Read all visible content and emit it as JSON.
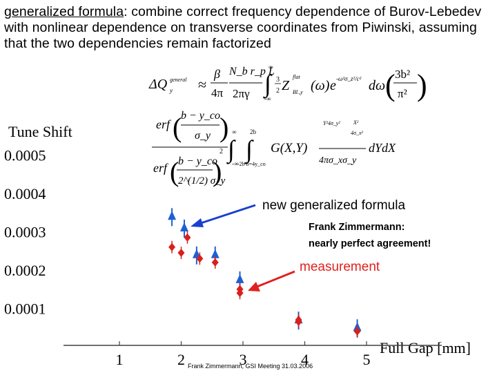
{
  "intro": {
    "term": "generalized formula",
    "text": ": combine correct frequency dependence of Burov-Lebedev with nonlinear dependence on transverse coordinates from Piwinski, assuming that the two dependencies remain factorized"
  },
  "formula": {
    "lhs": "ΔQ",
    "lhs_sup": "general",
    "lhs_sub": "y",
    "approx": "≈",
    "f1_num": "β",
    "f1_den": "4π",
    "f2_num": "N_b r_p L",
    "f2_den": "2πγ",
    "int_upper": "∞",
    "int_lower": "-∞",
    "Z_label": "Z",
    "Z_sup": "flat",
    "Z_sub": "Bl.,y",
    "omega_arg": "(ω)",
    "exp_base": "e",
    "exp_power": "-ω²σ_z²/c²",
    "d_omega": "dω",
    "bracket_num": "3b²",
    "bracket_den": "π²",
    "erf_top": "erf",
    "erf_top_num": "b − y_co",
    "erf_top_den": "σ_y",
    "erf_bottom": "erf",
    "erf_bottom_num": "b − y_co",
    "erf_bottom_den": "2^(1/2) σ_y",
    "square_exp": "2",
    "int2_upper": "∞",
    "int2_lower": "-∞",
    "int3_upper": "2b",
    "int3_lower": "-2b b=4y_co",
    "G_label": "G(X,Y)",
    "gauss_power_1": "Y²4σ_y²",
    "gauss_power_2": "X²",
    "gauss_power_3": "4σ_x²",
    "gauss_den": "4πσ_xσ_y",
    "dYdX": "dYdX"
  },
  "annotations": {
    "new_formula": "new generalized formula",
    "zimmermann": "Frank Zimmermann:",
    "agreement": "nearly perfect agreement!",
    "measurement": "measurement",
    "footer": "Frank Zimmermann, GSI Meeting 31.03.2006"
  },
  "colors": {
    "formula_series": "#1f5fd4",
    "measurement_series": "#d8201c",
    "arrow_blue": "#1a3fd0",
    "arrow_red": "#e0201e",
    "axis": "#404040"
  },
  "chart_data": {
    "type": "scatter",
    "title": "Tune Shift",
    "xlabel": "Full Gap [mm]",
    "ylabel": "",
    "xlim": [
      0.3,
      5.3
    ],
    "ylim": [
      0,
      0.00055
    ],
    "x_ticks": [
      1,
      2,
      3,
      4,
      5
    ],
    "x_tick_labels": [
      "1",
      "2",
      "3",
      "4",
      "5"
    ],
    "y_ticks": [
      0.0001,
      0.0002,
      0.0003,
      0.0004,
      0.0005
    ],
    "y_tick_labels": [
      "0.0001",
      "0.0002",
      "0.0003",
      "0.0004",
      "0.0005"
    ],
    "series": [
      {
        "name": "new generalized formula",
        "marker": "triangle",
        "points": [
          {
            "x": 1.85,
            "y": 0.00034
          },
          {
            "x": 2.05,
            "y": 0.00031
          },
          {
            "x": 2.25,
            "y": 0.00024
          },
          {
            "x": 2.55,
            "y": 0.00024
          },
          {
            "x": 2.95,
            "y": 0.000175
          },
          {
            "x": 3.9,
            "y": 7e-05
          },
          {
            "x": 4.85,
            "y": 5e-05
          }
        ]
      },
      {
        "name": "measurement",
        "marker": "diamond",
        "points": [
          {
            "x": 1.85,
            "y": 0.00026
          },
          {
            "x": 2.0,
            "y": 0.000245
          },
          {
            "x": 2.1,
            "y": 0.000285
          },
          {
            "x": 2.3,
            "y": 0.00023
          },
          {
            "x": 2.55,
            "y": 0.00022
          },
          {
            "x": 2.95,
            "y": 0.00015
          },
          {
            "x": 2.95,
            "y": 0.00014
          },
          {
            "x": 3.9,
            "y": 7e-05
          },
          {
            "x": 3.9,
            "y": 6.5e-05
          },
          {
            "x": 4.85,
            "y": 4e-05
          }
        ]
      }
    ]
  }
}
